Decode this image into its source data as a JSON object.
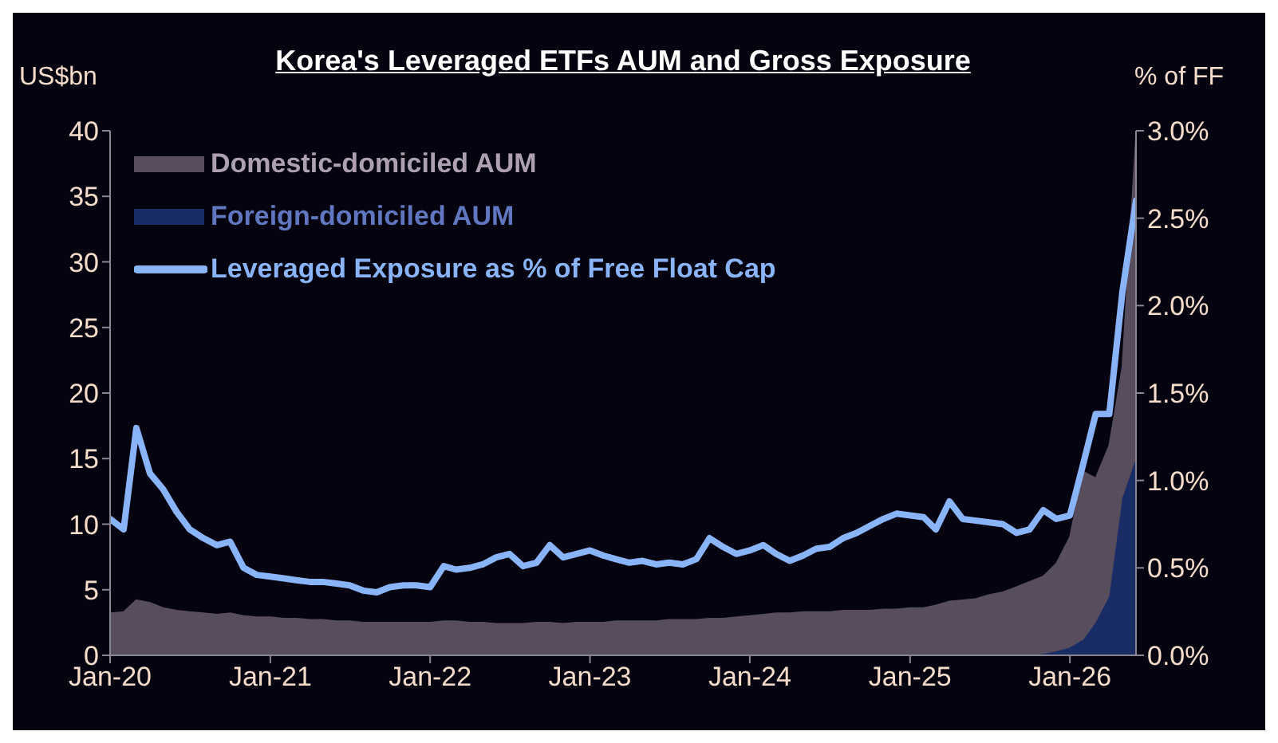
{
  "chart_data": {
    "type": "area",
    "title": "Korea's Leveraged ETFs AUM and Gross Exposure",
    "ylabel": "US$bn",
    "y2label": "% of FF",
    "stacked": true,
    "legend": "top left",
    "x": [
      "2020-01",
      "2020-02",
      "2020-03",
      "2020-04",
      "2020-05",
      "2020-06",
      "2020-07",
      "2020-08",
      "2020-09",
      "2020-10",
      "2020-11",
      "2020-12",
      "2021-01",
      "2021-02",
      "2021-03",
      "2021-04",
      "2021-05",
      "2021-06",
      "2021-07",
      "2021-08",
      "2021-09",
      "2021-10",
      "2021-11",
      "2021-12",
      "2022-01",
      "2022-02",
      "2022-03",
      "2022-04",
      "2022-05",
      "2022-06",
      "2022-07",
      "2022-08",
      "2022-09",
      "2022-10",
      "2022-11",
      "2022-12",
      "2023-01",
      "2023-02",
      "2023-03",
      "2023-04",
      "2023-05",
      "2023-06",
      "2023-07",
      "2023-08",
      "2023-09",
      "2023-10",
      "2023-11",
      "2023-12",
      "2024-01",
      "2024-02",
      "2024-03",
      "2024-04",
      "2024-05",
      "2024-06",
      "2024-07",
      "2024-08",
      "2024-09",
      "2024-10",
      "2024-11",
      "2024-12",
      "2025-01",
      "2025-02",
      "2025-03",
      "2025-04",
      "2025-05",
      "2025-06",
      "2025-07",
      "2025-08",
      "2025-09",
      "2025-10",
      "2025-11",
      "2025-12",
      "2026-01",
      "2026-02",
      "2026-03",
      "2026-04",
      "2026-05",
      "2026-06"
    ],
    "series": [
      {
        "name": "Foreign-domiciled AUM",
        "color": "#1a2c66",
        "values": [
          0,
          0,
          0,
          0,
          0,
          0,
          0,
          0,
          0,
          0,
          0,
          0,
          0,
          0,
          0,
          0,
          0,
          0,
          0,
          0,
          0,
          0,
          0,
          0,
          0,
          0,
          0,
          0,
          0,
          0,
          0,
          0,
          0,
          0,
          0,
          0,
          0,
          0,
          0,
          0,
          0,
          0,
          0,
          0,
          0,
          0,
          0,
          0,
          0,
          0,
          0,
          0,
          0,
          0,
          0,
          0,
          0,
          0,
          0,
          0,
          0,
          0,
          0,
          0,
          0,
          0,
          0,
          0,
          0,
          0,
          0.1,
          0.3,
          0.6,
          1.2,
          2.5,
          4.5,
          12,
          15
        ]
      },
      {
        "name": "Domestic-domiciled AUM",
        "color": "#574d5c",
        "values": [
          3.2,
          3.3,
          4.2,
          4,
          3.6,
          3.4,
          3.3,
          3.2,
          3.1,
          3.2,
          3,
          2.9,
          2.9,
          2.8,
          2.8,
          2.7,
          2.7,
          2.6,
          2.6,
          2.5,
          2.5,
          2.5,
          2.5,
          2.5,
          2.5,
          2.6,
          2.6,
          2.5,
          2.5,
          2.4,
          2.4,
          2.4,
          2.5,
          2.5,
          2.4,
          2.5,
          2.5,
          2.5,
          2.6,
          2.6,
          2.6,
          2.6,
          2.7,
          2.7,
          2.7,
          2.8,
          2.8,
          2.9,
          3,
          3.1,
          3.2,
          3.2,
          3.3,
          3.3,
          3.3,
          3.4,
          3.4,
          3.4,
          3.5,
          3.5,
          3.6,
          3.6,
          3.8,
          4.1,
          4.2,
          4.3,
          4.6,
          4.8,
          5.2,
          5.6,
          5.9,
          6.7,
          8.4,
          12.8,
          11,
          11.5,
          10,
          24.5
        ]
      },
      {
        "name": "Leveraged Exposure as % of Free Float Cap",
        "type": "line",
        "axis": "y2",
        "color": "#8ab4f8",
        "values": [
          0.78,
          0.72,
          1.3,
          1.04,
          0.95,
          0.82,
          0.72,
          0.67,
          0.63,
          0.65,
          0.5,
          0.46,
          0.45,
          0.44,
          0.43,
          0.42,
          0.42,
          0.41,
          0.4,
          0.37,
          0.36,
          0.39,
          0.4,
          0.4,
          0.39,
          0.51,
          0.49,
          0.5,
          0.52,
          0.56,
          0.58,
          0.51,
          0.53,
          0.63,
          0.56,
          0.58,
          0.6,
          0.57,
          0.55,
          0.53,
          0.54,
          0.52,
          0.53,
          0.52,
          0.55,
          0.67,
          0.62,
          0.58,
          0.6,
          0.63,
          0.58,
          0.54,
          0.57,
          0.61,
          0.62,
          0.67,
          0.7,
          0.74,
          0.78,
          0.81,
          0.8,
          0.79,
          0.72,
          0.88,
          0.78,
          0.77,
          0.76,
          0.75,
          0.7,
          0.72,
          0.83,
          0.78,
          0.8,
          1.1,
          1.38,
          1.38,
          2.08,
          2.6
        ]
      }
    ],
    "xlim": [
      "2020-01",
      "2026-06"
    ],
    "xticks": [
      {
        "value": "2020-01",
        "label": "Jan-20"
      },
      {
        "value": "2021-01",
        "label": "Jan-21"
      },
      {
        "value": "2022-01",
        "label": "Jan-22"
      },
      {
        "value": "2023-01",
        "label": "Jan-23"
      },
      {
        "value": "2024-01",
        "label": "Jan-24"
      },
      {
        "value": "2025-01",
        "label": "Jan-25"
      },
      {
        "value": "2026-01",
        "label": "Jan-26"
      }
    ],
    "ylim": [
      0,
      40
    ],
    "yticks": [
      0,
      5,
      10,
      15,
      20,
      25,
      30,
      35,
      40
    ],
    "y2lim": [
      0,
      3
    ],
    "y2ticks": [
      {
        "value": 0,
        "label": "0.0%"
      },
      {
        "value": 0.5,
        "label": "0.5%"
      },
      {
        "value": 1,
        "label": "1.0%"
      },
      {
        "value": 1.5,
        "label": "1.5%"
      },
      {
        "value": 2,
        "label": "2.0%"
      },
      {
        "value": 2.5,
        "label": "2.5%"
      },
      {
        "value": 3,
        "label": "3.0%"
      }
    ]
  }
}
